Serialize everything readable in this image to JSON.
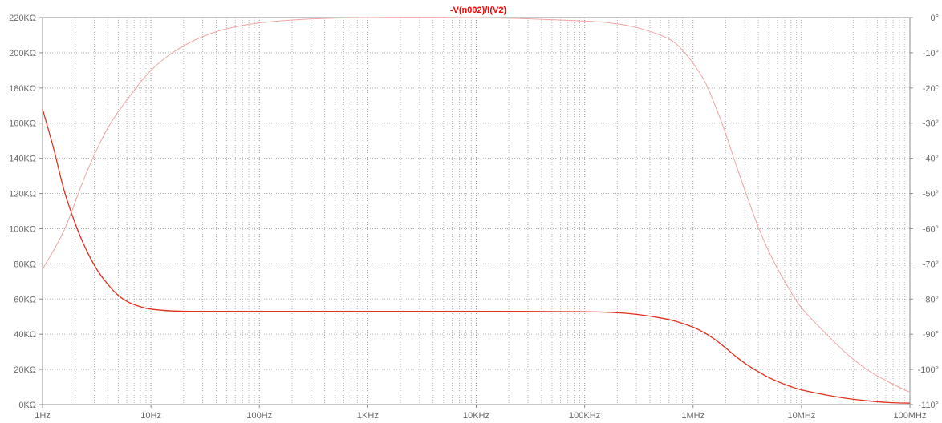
{
  "chart_data": {
    "type": "line",
    "title": "-V(n002)/I(V2)",
    "title_color": "#ff0000",
    "x_scale": "log",
    "xlim": [
      1,
      100000000
    ],
    "grid": true,
    "grid_style": "dotted",
    "x_ticks": [
      {
        "value": 1,
        "label": "1Hz"
      },
      {
        "value": 10,
        "label": "10Hz"
      },
      {
        "value": 100,
        "label": "100Hz"
      },
      {
        "value": 1000,
        "label": "1KHz"
      },
      {
        "value": 10000,
        "label": "10KHz"
      },
      {
        "value": 100000,
        "label": "100KHz"
      },
      {
        "value": 1000000,
        "label": "1MHz"
      },
      {
        "value": 10000000,
        "label": "10MHz"
      },
      {
        "value": 100000000,
        "label": "100MHz"
      }
    ],
    "y_left": {
      "ylim": [
        0,
        220
      ],
      "unit": "KΩ",
      "ticks": [
        {
          "value": 0,
          "label": "0KΩ"
        },
        {
          "value": 20,
          "label": "20KΩ"
        },
        {
          "value": 40,
          "label": "40KΩ"
        },
        {
          "value": 60,
          "label": "60KΩ"
        },
        {
          "value": 80,
          "label": "80KΩ"
        },
        {
          "value": 100,
          "label": "100KΩ"
        },
        {
          "value": 120,
          "label": "120KΩ"
        },
        {
          "value": 140,
          "label": "140KΩ"
        },
        {
          "value": 160,
          "label": "160KΩ"
        },
        {
          "value": 180,
          "label": "180KΩ"
        },
        {
          "value": 200,
          "label": "200KΩ"
        },
        {
          "value": 220,
          "label": "220KΩ"
        }
      ]
    },
    "y_right": {
      "ylim": [
        -110,
        0
      ],
      "unit": "°",
      "ticks": [
        {
          "value": 0,
          "label": "0°"
        },
        {
          "value": -10,
          "label": "-10°"
        },
        {
          "value": -20,
          "label": "-20°"
        },
        {
          "value": -30,
          "label": "-30°"
        },
        {
          "value": -40,
          "label": "-40°"
        },
        {
          "value": -50,
          "label": "-50°"
        },
        {
          "value": -60,
          "label": "-60°"
        },
        {
          "value": -70,
          "label": "-70°"
        },
        {
          "value": -80,
          "label": "-80°"
        },
        {
          "value": -90,
          "label": "-90°"
        },
        {
          "value": -100,
          "label": "-100°"
        },
        {
          "value": -110,
          "label": "-110°"
        }
      ]
    },
    "series": [
      {
        "id": "magnitude",
        "axis": "left",
        "color": "#e0301e",
        "style": "solid",
        "x": [
          1,
          1.26,
          1.58,
          2,
          2.51,
          3.16,
          3.98,
          5.01,
          6.31,
          7.94,
          10,
          15.8,
          25,
          50,
          100,
          1000,
          10000,
          100000,
          200000,
          300000,
          500000,
          700000,
          1000000,
          1300000,
          1600000,
          2000000,
          2500000,
          3160000,
          4000000,
          5000000,
          6300000,
          8000000,
          10000000,
          15800000,
          25000000,
          40000000,
          63000000,
          100000000
        ],
        "values": [
          168,
          146,
          122,
          103,
          88.5,
          77,
          68.5,
          62,
          58,
          55.7,
          54.3,
          53.2,
          53,
          53,
          53,
          53,
          53,
          52.8,
          52.2,
          51.3,
          49.3,
          47.3,
          44,
          40.5,
          36.9,
          32.2,
          27.2,
          22.6,
          18.7,
          15.4,
          12.6,
          10.2,
          8.4,
          5.8,
          3.7,
          2.2,
          1.2,
          0.8
        ]
      },
      {
        "id": "phase",
        "axis": "right",
        "color": "#f2a3a3",
        "style": "solid",
        "x": [
          1,
          1.58,
          2.51,
          3.98,
          6.31,
          10,
          15.8,
          25,
          40,
          63,
          100,
          250,
          1000,
          10000,
          100000,
          200000,
          300000,
          500000,
          700000,
          1000000,
          1300000,
          1600000,
          2000000,
          2500000,
          3160000,
          4000000,
          5000000,
          6300000,
          8000000,
          10000000,
          15800000,
          25000000,
          40000000,
          63000000,
          100000000
        ],
        "values": [
          -71.5,
          -60.5,
          -44.5,
          -31.5,
          -22.5,
          -15,
          -10,
          -6.5,
          -4,
          -2.5,
          -1.5,
          -0.5,
          0,
          0,
          -1,
          -1.8,
          -2.8,
          -5,
          -7.5,
          -13,
          -18.5,
          -25,
          -33,
          -42,
          -51,
          -59.5,
          -66.5,
          -72.5,
          -78,
          -82.5,
          -89,
          -95,
          -100,
          -103.5,
          -106.5
        ]
      }
    ]
  }
}
